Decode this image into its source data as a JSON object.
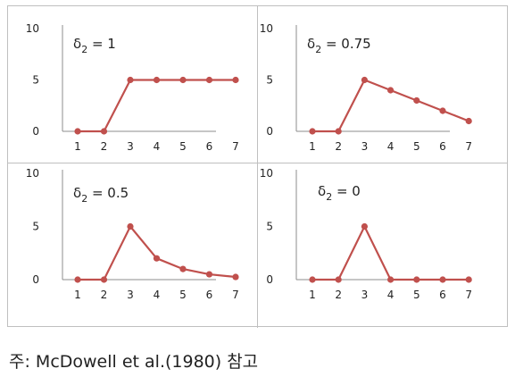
{
  "note": "주: McDowell et al.(1980) 참고",
  "colors": {
    "series": "#c0504d",
    "axis": "#8c8c8c",
    "border": "#bfbfbf"
  },
  "chart_data": [
    {
      "type": "line",
      "delta_symbol": "δ",
      "delta_sub": "2",
      "label_suffix": " = 1",
      "x": [
        1,
        2,
        3,
        4,
        5,
        6,
        7
      ],
      "values": [
        0,
        0,
        5,
        5,
        5,
        5,
        5
      ],
      "ylim": [
        0,
        10
      ],
      "yticks": [
        0,
        5,
        10
      ],
      "xticks": [
        "1",
        "2",
        "3",
        "4",
        "5",
        "6",
        "7"
      ]
    },
    {
      "type": "line",
      "delta_symbol": "δ",
      "delta_sub": "2",
      "label_suffix": " = 0.75",
      "x": [
        1,
        2,
        3,
        4,
        5,
        6,
        7
      ],
      "values": [
        0,
        0,
        5,
        4,
        3,
        2,
        1
      ],
      "ylim": [
        0,
        10
      ],
      "yticks": [
        0,
        5,
        10
      ],
      "xticks": [
        "1",
        "2",
        "3",
        "4",
        "5",
        "6",
        "7"
      ]
    },
    {
      "type": "line",
      "delta_symbol": "δ",
      "delta_sub": "2",
      "label_suffix": " = 0.5",
      "x": [
        1,
        2,
        3,
        4,
        5,
        6,
        7
      ],
      "values": [
        0,
        0,
        5,
        2,
        1,
        0.5,
        0.25
      ],
      "ylim": [
        0,
        10
      ],
      "yticks": [
        0,
        5,
        10
      ],
      "xticks": [
        "1",
        "2",
        "3",
        "4",
        "5",
        "6",
        "7"
      ]
    },
    {
      "type": "line",
      "delta_symbol": "δ",
      "delta_sub": "2",
      "label_suffix": " = 0",
      "x": [
        1,
        2,
        3,
        4,
        5,
        6,
        7
      ],
      "values": [
        0,
        0,
        5,
        0,
        0,
        0,
        0
      ],
      "ylim": [
        0,
        10
      ],
      "yticks": [
        0,
        5,
        10
      ],
      "xticks": [
        "1",
        "2",
        "3",
        "4",
        "5",
        "6",
        "7"
      ]
    }
  ]
}
